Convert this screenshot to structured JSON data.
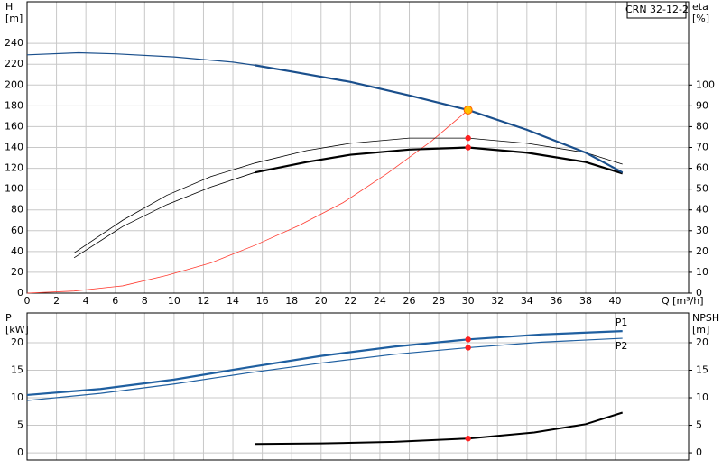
{
  "chart_data": [
    {
      "type": "line",
      "legend_box": "CRN 32-12-2",
      "y_label": "H",
      "y_unit": "[m]",
      "y2_label": "eta",
      "y2_unit": "[%]",
      "x_label": "Q [m³/h]",
      "xlim": [
        0,
        45
      ],
      "xticks": [
        0,
        2,
        4,
        6,
        8,
        10,
        12,
        14,
        16,
        18,
        20,
        22,
        24,
        26,
        28,
        30,
        32,
        34,
        36,
        38,
        40
      ],
      "ylim": [
        0,
        280
      ],
      "yticks": [
        0,
        20,
        40,
        60,
        80,
        100,
        120,
        140,
        160,
        180,
        200,
        220,
        240
      ],
      "y2lim": [
        0,
        140
      ],
      "y2ticks": [
        0,
        10,
        20,
        30,
        40,
        50,
        60,
        70,
        80,
        90,
        100
      ],
      "grid": true,
      "series": [
        {
          "color": "#ff3b30",
          "width": 0.8,
          "x": [
            0,
            3.2,
            6.5,
            9.5,
            12.5,
            15.5,
            18.5,
            21.5,
            24.5,
            27.5,
            30
          ],
          "values": [
            0,
            2,
            7,
            17,
            29,
            46,
            65,
            87,
            115,
            146,
            176
          ]
        },
        {
          "color": "#000000",
          "width": 0.8,
          "axis": "y2",
          "x": [
            3.2,
            6.5,
            9.5,
            12.5,
            15.5,
            19,
            22,
            26,
            30,
            34,
            38,
            40.5
          ],
          "values": [
            19.3,
            35,
            47,
            56,
            62.5,
            68.5,
            72,
            74.5,
            74.5,
            72,
            67.5,
            62
          ]
        },
        {
          "color": "#000000",
          "width": 0.8,
          "axis": "y2",
          "x": [
            3.2,
            6.5,
            9.5,
            12.5,
            15.5
          ],
          "values": [
            17,
            32,
            42.5,
            51,
            58
          ]
        },
        {
          "color": "#000000",
          "width": 2.2,
          "axis": "y2",
          "x": [
            15.5,
            19,
            22,
            26,
            30,
            34,
            38,
            40.5
          ],
          "values": [
            58,
            63,
            66.5,
            69,
            70,
            67.5,
            63,
            57.5
          ]
        },
        {
          "color": "#1a4f8c",
          "width": 1.2,
          "x": [
            0,
            3.5,
            6,
            10,
            14,
            15.5
          ],
          "values": [
            229,
            231,
            230,
            227,
            222,
            219
          ]
        },
        {
          "color": "#1a4f8c",
          "width": 2.2,
          "x": [
            15.5,
            18,
            22,
            26,
            30,
            34,
            38,
            40.5
          ],
          "values": [
            219,
            213,
            203,
            190,
            176,
            157,
            135,
            116
          ]
        },
        {
          "color": "#ff2020",
          "marker": true,
          "axis": "y2",
          "x": [
            30,
            30
          ],
          "values": [
            74.5,
            70
          ]
        },
        {
          "color": "#ffc000",
          "marker": true,
          "x": [
            30
          ],
          "values": [
            176
          ]
        }
      ]
    },
    {
      "type": "line",
      "y_label": "P",
      "y_unit": "[kW]",
      "y2_label": "NPSH",
      "y2_unit": "[m]",
      "xlim": [
        0,
        45
      ],
      "ylim": [
        -1.3,
        25.4
      ],
      "yticks": [
        0,
        5,
        10,
        15,
        20
      ],
      "y2lim": [
        -1.3,
        25.4
      ],
      "y2ticks": [
        0,
        5,
        10,
        15,
        20
      ],
      "grid": true,
      "series": [
        {
          "name": "P1",
          "color": "#1f5fa0",
          "width": 2.2,
          "x": [
            0,
            5,
            10,
            15,
            20,
            25,
            30,
            35,
            40.5
          ],
          "values": [
            10.5,
            11.6,
            13.3,
            15.5,
            17.6,
            19.3,
            20.6,
            21.5,
            22.1
          ]
        },
        {
          "name": "P2",
          "color": "#1f5fa0",
          "width": 1.2,
          "x": [
            0,
            5,
            10,
            15,
            20,
            25,
            30,
            35,
            40.5
          ],
          "values": [
            9.5,
            10.8,
            12.5,
            14.5,
            16.3,
            17.9,
            19.1,
            20.1,
            20.8
          ]
        },
        {
          "color": "#000000",
          "width": 2,
          "axis": "y2",
          "x": [
            15.5,
            20,
            25,
            30,
            34.5,
            38,
            40.5
          ],
          "values": [
            1.6,
            1.7,
            2.0,
            2.6,
            3.7,
            5.2,
            7.3
          ]
        },
        {
          "color": "#ff2020",
          "marker": true,
          "x": [
            30,
            30
          ],
          "values": [
            20.6,
            19.1
          ]
        },
        {
          "color": "#ff2020",
          "marker": true,
          "axis": "y2",
          "x": [
            30
          ],
          "values": [
            2.6
          ]
        }
      ]
    }
  ]
}
